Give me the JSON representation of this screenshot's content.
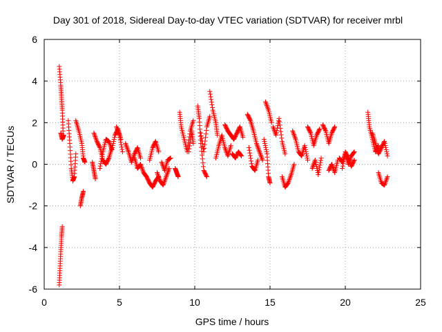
{
  "chart_data": {
    "type": "scatter",
    "title": "Day 301 of 2018, Sidereal Day-to-day VTEC variation (SDTVAR) for receiver mrbl",
    "xlabel": "GPS time / hours",
    "ylabel": "SDTVAR / TECUs",
    "xlim": [
      0,
      25
    ],
    "ylim": [
      -6,
      6
    ],
    "xticks": [
      "0",
      "5",
      "10",
      "15",
      "20",
      "25"
    ],
    "yticks": [
      "-6",
      "-4",
      "-2",
      "0",
      "2",
      "4",
      "6"
    ],
    "grid": true,
    "marker": "+",
    "color": "#ff0000",
    "series": [
      {
        "name": "SDTVAR",
        "segments": [
          {
            "x": [
              1.0,
              1.1,
              1.15,
              1.2,
              1.25
            ],
            "y": [
              4.7,
              3.8,
              3.2,
              2.6,
              1.6
            ]
          },
          {
            "x": [
              1.0,
              1.05,
              1.1,
              1.15,
              1.2
            ],
            "y": [
              -5.8,
              -5.0,
              -4.2,
              -3.5,
              -3.0
            ]
          },
          {
            "x": [
              1.1,
              1.2,
              1.3
            ],
            "y": [
              1.5,
              1.2,
              1.4
            ]
          },
          {
            "x": [
              1.6,
              1.7,
              1.8,
              1.9,
              2.0,
              2.1
            ],
            "y": [
              2.1,
              1.0,
              -0.2,
              -0.8,
              -0.6,
              0.5
            ]
          },
          {
            "x": [
              2.1,
              2.3,
              2.5,
              2.6,
              2.7
            ],
            "y": [
              2.1,
              1.6,
              1.0,
              0.3,
              0.1
            ]
          },
          {
            "x": [
              2.4,
              2.5,
              2.6
            ],
            "y": [
              -2.0,
              -1.6,
              -1.3
            ]
          },
          {
            "x": [
              3.2,
              3.3,
              3.4
            ],
            "y": [
              0.1,
              -0.3,
              -0.7
            ]
          },
          {
            "x": [
              3.3,
              3.5,
              3.7,
              3.9,
              4.1,
              4.3,
              4.5
            ],
            "y": [
              1.5,
              1.1,
              0.8,
              0.2,
              0.0,
              0.3,
              0.8
            ]
          },
          {
            "x": [
              3.7,
              3.9,
              4.1,
              4.3,
              4.5,
              4.7,
              4.9,
              5.1
            ],
            "y": [
              -0.2,
              0.6,
              1.2,
              1.1,
              0.7,
              1.4,
              1.7,
              1.2
            ]
          },
          {
            "x": [
              4.8,
              5.0,
              5.2
            ],
            "y": [
              1.8,
              1.4,
              0.6
            ]
          },
          {
            "x": [
              5.4,
              5.6,
              5.8,
              6.0,
              6.2,
              6.4
            ],
            "y": [
              1.0,
              0.6,
              0.1,
              0.5,
              0.8,
              0.3
            ]
          },
          {
            "x": [
              6.0,
              6.2,
              6.4,
              6.6,
              6.8,
              7.0,
              7.2,
              7.4,
              7.6
            ],
            "y": [
              0.3,
              -0.2,
              0.0,
              -0.4,
              -0.6,
              -0.9,
              -1.1,
              -0.8,
              -0.6
            ]
          },
          {
            "x": [
              7.0,
              7.2,
              7.4,
              7.6
            ],
            "y": [
              0.2,
              0.8,
              1.1,
              0.6
            ]
          },
          {
            "x": [
              7.5,
              7.7,
              7.9,
              8.1,
              8.3
            ],
            "y": [
              -0.4,
              -0.8,
              -1.0,
              -0.6,
              -0.2
            ]
          },
          {
            "x": [
              7.8,
              8.0,
              8.2,
              8.4
            ],
            "y": [
              0.1,
              -0.3,
              0.2,
              0.3
            ]
          },
          {
            "x": [
              8.7,
              8.8,
              8.9
            ],
            "y": [
              -0.2,
              -0.4,
              -0.6
            ]
          },
          {
            "x": [
              9.0,
              9.1,
              9.3,
              9.5,
              9.7,
              9.9
            ],
            "y": [
              2.5,
              1.8,
              1.2,
              0.6,
              1.6,
              2.1
            ]
          },
          {
            "x": [
              9.6,
              9.8,
              9.9
            ],
            "y": [
              0.6,
              1.6,
              1.0
            ]
          },
          {
            "x": [
              10.2,
              10.3,
              10.4,
              10.6,
              10.8
            ],
            "y": [
              2.8,
              2.2,
              1.0,
              -0.3,
              -0.6
            ]
          },
          {
            "x": [
              10.4,
              10.6,
              10.8,
              11.0
            ],
            "y": [
              1.5,
              0.6,
              1.8,
              2.3
            ]
          },
          {
            "x": [
              11.0,
              11.2,
              11.4,
              11.5
            ],
            "y": [
              3.5,
              2.6,
              2.0,
              1.4
            ]
          },
          {
            "x": [
              11.4,
              11.6,
              11.8,
              12.0,
              12.2,
              12.4
            ],
            "y": [
              0.3,
              0.9,
              1.4,
              0.8,
              0.4,
              0.9
            ]
          },
          {
            "x": [
              12.0,
              12.2,
              12.4,
              12.6,
              12.8,
              13.0,
              13.2
            ],
            "y": [
              1.9,
              1.6,
              1.4,
              1.2,
              1.5,
              1.8,
              1.3
            ]
          },
          {
            "x": [
              12.5,
              12.7,
              12.9,
              13.1
            ],
            "y": [
              0.5,
              0.3,
              0.6,
              0.4
            ]
          },
          {
            "x": [
              13.5,
              13.7,
              13.9,
              14.1,
              14.3,
              14.5
            ],
            "y": [
              2.4,
              2.1,
              1.6,
              1.0,
              0.6,
              0.2
            ]
          },
          {
            "x": [
              13.6,
              13.8,
              14.0,
              14.2
            ],
            "y": [
              0.8,
              -0.1,
              -0.3,
              0.2
            ]
          },
          {
            "x": [
              14.6,
              14.8,
              14.9,
              15.0
            ],
            "y": [
              1.2,
              0.5,
              -0.6,
              -0.9
            ]
          },
          {
            "x": [
              14.7,
              14.9,
              15.1
            ],
            "y": [
              3.0,
              2.6,
              2.0
            ]
          },
          {
            "x": [
              15.2,
              15.4,
              15.6,
              15.8,
              16.0
            ],
            "y": [
              1.8,
              1.4,
              2.2,
              1.1,
              0.5
            ]
          },
          {
            "x": [
              15.8,
              16.0,
              16.2,
              16.4,
              16.6
            ],
            "y": [
              -0.6,
              -1.1,
              -0.9,
              -0.5,
              0.0
            ]
          },
          {
            "x": [
              16.5,
              16.7,
              16.9,
              17.1,
              17.3,
              17.5
            ],
            "y": [
              1.6,
              1.2,
              0.6,
              0.4,
              0.9,
              0.2
            ]
          },
          {
            "x": [
              17.5,
              17.7,
              17.9,
              18.1,
              18.3
            ],
            "y": [
              1.8,
              1.5,
              0.9,
              1.4,
              1.7
            ]
          },
          {
            "x": [
              17.8,
              18.0,
              18.2,
              18.4
            ],
            "y": [
              -0.2,
              0.2,
              -0.5,
              0.3
            ]
          },
          {
            "x": [
              18.5,
              18.7,
              18.9,
              19.1,
              19.3
            ],
            "y": [
              1.9,
              1.6,
              1.0,
              1.5,
              1.8
            ]
          },
          {
            "x": [
              18.9,
              19.1,
              19.3,
              19.5
            ],
            "y": [
              -0.3,
              0.0,
              -0.4,
              0.2
            ]
          },
          {
            "x": [
              19.6,
              19.8,
              20.0,
              20.2,
              20.4,
              20.6
            ],
            "y": [
              0.3,
              0.1,
              0.5,
              0.0,
              0.4,
              0.6
            ]
          },
          {
            "x": [
              19.8,
              20.0,
              20.2,
              20.4,
              20.6
            ],
            "y": [
              -0.2,
              0.6,
              0.3,
              -0.1,
              0.2
            ]
          },
          {
            "x": [
              21.5,
              21.6,
              21.8,
              22.0,
              22.2
            ],
            "y": [
              2.5,
              1.8,
              1.2,
              0.6,
              0.9
            ]
          },
          {
            "x": [
              21.8,
              22.0,
              22.2,
              22.4,
              22.6,
              22.8
            ],
            "y": [
              1.5,
              1.0,
              0.5,
              0.8,
              1.1,
              0.4
            ]
          },
          {
            "x": [
              22.2,
              22.4,
              22.6,
              22.8
            ],
            "y": [
              -0.4,
              -0.9,
              -1.0,
              -0.6
            ]
          }
        ]
      }
    ]
  }
}
